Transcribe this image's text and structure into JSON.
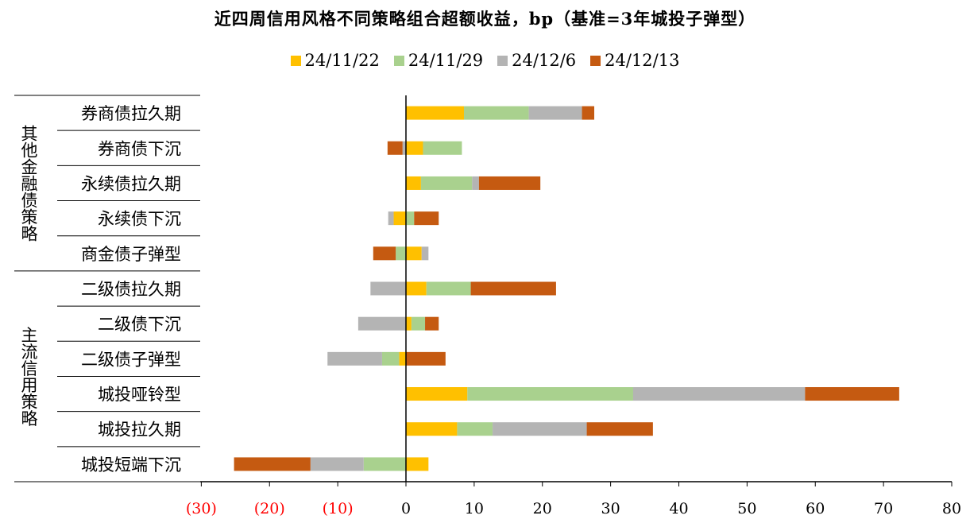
{
  "colors": {
    "s0": "#FFC000",
    "s1": "#A9D18E",
    "s2": "#B4B4B4",
    "s3": "#C55A11",
    "negative_tick": "#FF0000",
    "axis": "#000000"
  },
  "chart_data": {
    "type": "bar",
    "orientation": "horizontal",
    "stacked": true,
    "title": "近四周信用风格不同策略组合超额收益，bp（基准=3年城投子弹型）",
    "legend_position": "top",
    "xlim": [
      -30,
      80
    ],
    "xticks": [
      -30,
      -20,
      -10,
      0,
      10,
      20,
      30,
      40,
      50,
      60,
      70,
      80
    ],
    "xtick_labels": [
      "(30)",
      "(20)",
      "(10)",
      "0",
      "10",
      "20",
      "30",
      "40",
      "50",
      "60",
      "70",
      "80"
    ],
    "groups": [
      {
        "label": "其他金融债策略",
        "categories": [
          "券商债拉久期",
          "券商债下沉",
          "永续债拉久期",
          "永续债下沉",
          "商金债子弹型"
        ]
      },
      {
        "label": "主流信用策略",
        "categories": [
          "二级债拉久期",
          "二级债下沉",
          "二级债子弹型",
          "城投哑铃型",
          "城投拉久期",
          "城投短端下沉"
        ]
      }
    ],
    "categories": [
      "券商债拉久期",
      "券商债下沉",
      "永续债拉久期",
      "永续债下沉",
      "商金债子弹型",
      "二级债拉久期",
      "二级债下沉",
      "二级债子弹型",
      "城投哑铃型",
      "城投拉久期",
      "城投短端下沉"
    ],
    "series": [
      {
        "name": "24/11/22",
        "values": [
          8.5,
          2.5,
          2.2,
          -1.8,
          2.3,
          3.0,
          0.8,
          -1.0,
          9.0,
          7.5,
          3.3
        ]
      },
      {
        "name": "24/11/29",
        "values": [
          9.5,
          5.7,
          7.5,
          1.2,
          -1.5,
          6.5,
          2.0,
          -2.5,
          24.3,
          5.2,
          -6.2
        ]
      },
      {
        "name": "24/12/6",
        "values": [
          7.8,
          -0.5,
          1.0,
          -0.8,
          1.0,
          -5.2,
          -7.0,
          -8.0,
          25.2,
          13.8,
          -7.8
        ]
      },
      {
        "name": "24/12/13",
        "values": [
          1.8,
          -2.2,
          9.0,
          3.6,
          -3.3,
          12.5,
          2.0,
          5.8,
          13.8,
          9.7,
          -11.2
        ]
      }
    ]
  }
}
